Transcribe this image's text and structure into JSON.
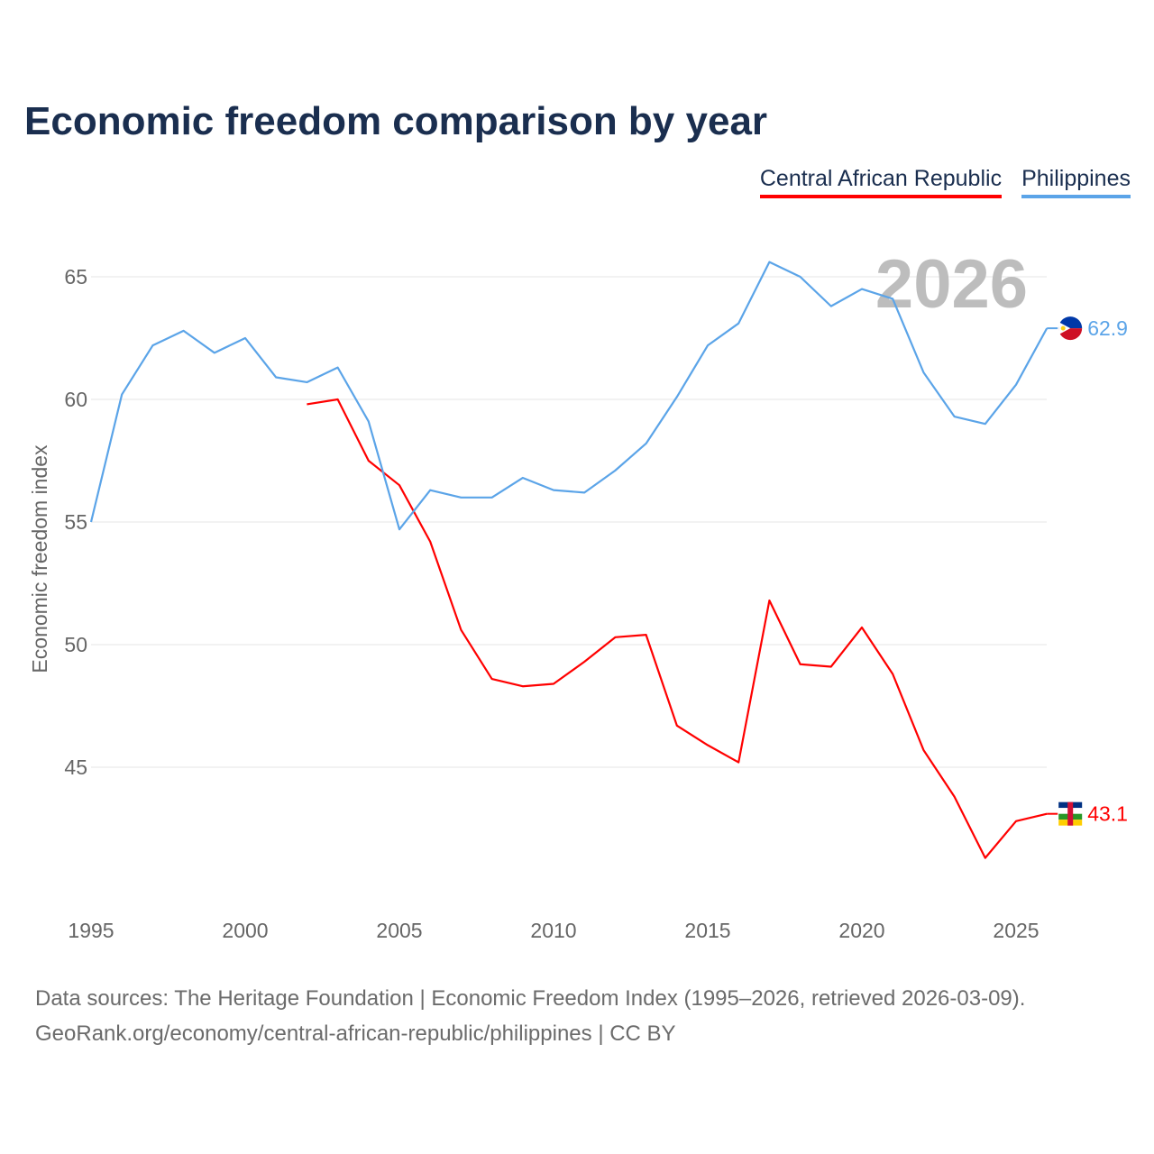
{
  "chart_data": {
    "type": "line",
    "title": "Economic freedom comparison by year",
    "ylabel": "Economic freedom index",
    "xlabel": "",
    "xlim": [
      1995,
      2026
    ],
    "ylim": [
      40,
      67
    ],
    "x_ticks": [
      1995,
      2000,
      2005,
      2010,
      2015,
      2020,
      2025
    ],
    "y_ticks": [
      45,
      50,
      55,
      60,
      65
    ],
    "grid": true,
    "legend_position": "top-right",
    "year_watermark": "2026",
    "series": [
      {
        "name": "Central African Republic",
        "color": "#ff0000",
        "end_label": "43.1",
        "x": [
          2002,
          2003,
          2004,
          2005,
          2006,
          2007,
          2008,
          2009,
          2010,
          2011,
          2012,
          2013,
          2014,
          2015,
          2016,
          2017,
          2018,
          2019,
          2020,
          2021,
          2022,
          2023,
          2024,
          2025,
          2026
        ],
        "values": [
          59.8,
          60.0,
          57.5,
          56.5,
          54.2,
          50.6,
          48.6,
          48.3,
          48.4,
          49.3,
          50.3,
          50.4,
          46.7,
          45.9,
          45.2,
          51.8,
          49.2,
          49.1,
          50.7,
          48.8,
          45.7,
          43.8,
          41.3,
          42.8,
          43.1
        ]
      },
      {
        "name": "Philippines",
        "color": "#5ba4e8",
        "end_label": "62.9",
        "x": [
          1995,
          1996,
          1997,
          1998,
          1999,
          2000,
          2001,
          2002,
          2003,
          2004,
          2005,
          2006,
          2007,
          2008,
          2009,
          2010,
          2011,
          2012,
          2013,
          2014,
          2015,
          2016,
          2017,
          2018,
          2019,
          2020,
          2021,
          2022,
          2023,
          2024,
          2025,
          2026
        ],
        "values": [
          55.0,
          60.2,
          62.2,
          62.8,
          61.9,
          62.5,
          60.9,
          60.7,
          61.3,
          59.1,
          54.7,
          56.3,
          56.0,
          56.0,
          56.8,
          56.3,
          56.2,
          57.1,
          58.2,
          60.1,
          62.2,
          63.1,
          65.6,
          65.0,
          63.8,
          64.5,
          64.1,
          61.1,
          59.3,
          59.0,
          60.6,
          62.9
        ]
      }
    ]
  },
  "footer": {
    "line1": "Data sources: The Heritage Foundation | Economic Freedom Index (1995–2026, retrieved 2026-03-09).",
    "line2": "GeoRank.org/economy/central-african-republic/philippines | CC BY"
  }
}
